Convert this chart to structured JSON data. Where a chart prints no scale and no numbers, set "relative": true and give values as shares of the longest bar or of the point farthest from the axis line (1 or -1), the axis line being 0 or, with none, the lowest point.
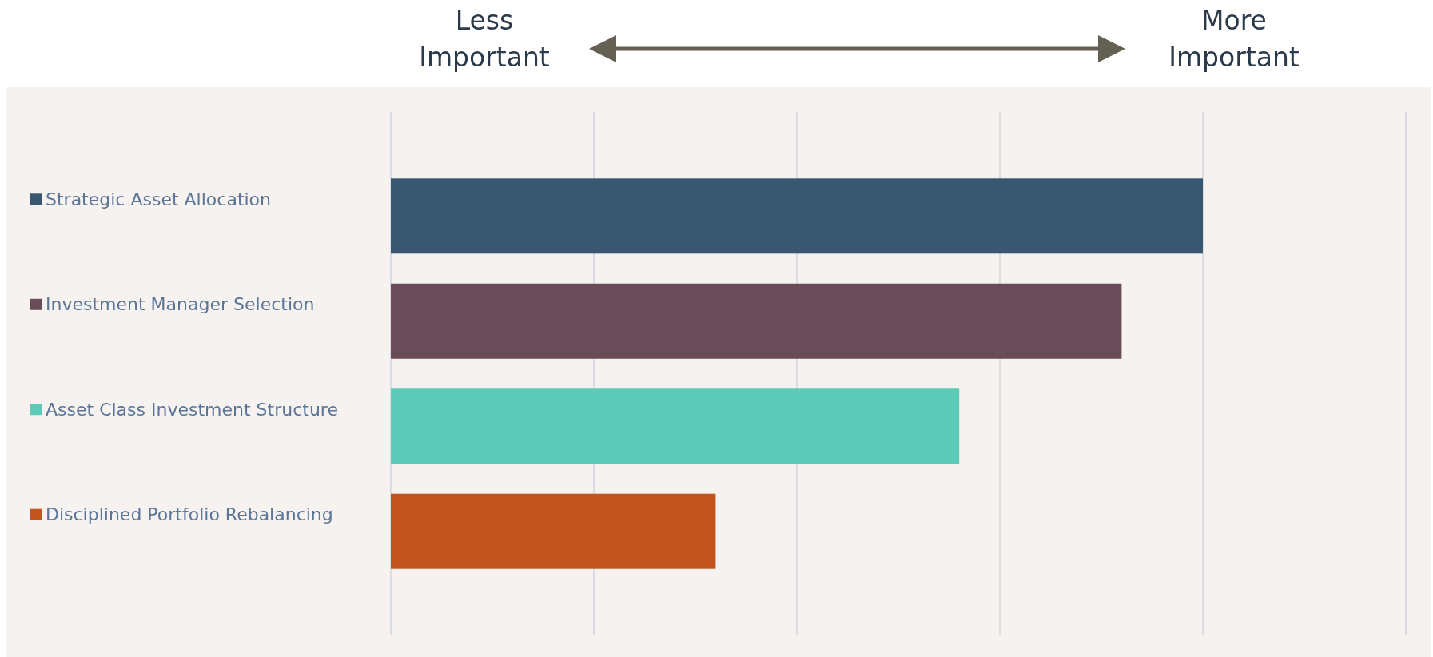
{
  "chart_data": {
    "type": "bar",
    "orientation": "horizontal",
    "relative": true,
    "grid": "x",
    "categories": [
      "Strategic Asset Allocation",
      "Investment Manager Selection",
      "Asset Class Investment Structure",
      "Disciplined Portfolio Rebalancing"
    ],
    "values": [
      1,
      0.9,
      0.7,
      0.4
    ],
    "colors": [
      "#3a5772",
      "#6a4c59",
      "#5ecab8",
      "#c3541f"
    ],
    "annotations": [
      "Less Important",
      "More Important"
    ]
  }
}
